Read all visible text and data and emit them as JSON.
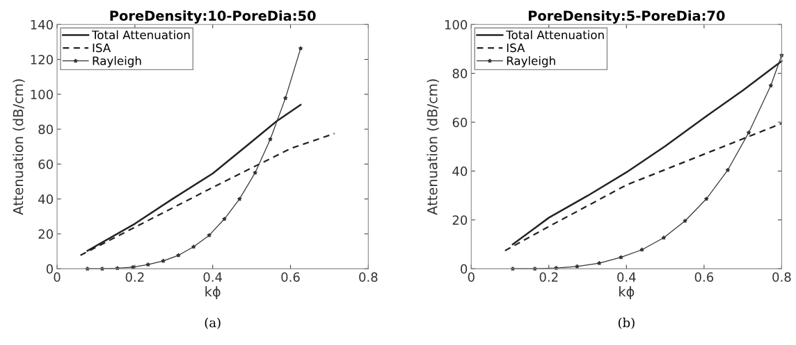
{
  "chart_data": [
    {
      "type": "line",
      "title": "PoreDensity:10-PoreDia:50",
      "xlabel": "kϕ",
      "ylabel": "Attenuation (dB/cm)",
      "xlim": [
        0,
        0.8
      ],
      "ylim": [
        0,
        140
      ],
      "xticks": [
        0,
        0.2,
        0.4,
        0.6,
        0.8
      ],
      "yticks": [
        0,
        20,
        40,
        60,
        80,
        100,
        120,
        140
      ],
      "grid": false,
      "legend": "top left",
      "annotations": [
        "(a)"
      ],
      "series": [
        {
          "name": "Total Attenuation",
          "color": "#222222",
          "line_style": "solid",
          "marker": "none",
          "x": [
            0.078,
            0.2,
            0.3,
            0.4,
            0.5,
            0.564,
            0.626
          ],
          "values": [
            10.3,
            25.8,
            40.5,
            54.6,
            72.8,
            84.5,
            94.0
          ]
        },
        {
          "name": "ISA",
          "color": "#222222",
          "line_style": "dashed",
          "marker": "none",
          "x": [
            0.06,
            0.2,
            0.4,
            0.6,
            0.713
          ],
          "values": [
            7.7,
            23.8,
            46.6,
            68.9,
            77.5
          ]
        },
        {
          "name": "Rayleigh",
          "color": "#333333",
          "line_style": "solid",
          "marker": "star",
          "x": [
            0.078,
            0.116,
            0.155,
            0.195,
            0.234,
            0.273,
            0.312,
            0.351,
            0.391,
            0.43,
            0.469,
            0.509,
            0.548,
            0.587,
            0.626
          ],
          "values": [
            0,
            0,
            0.3,
            0.9,
            2.4,
            4.5,
            7.7,
            12.6,
            19.2,
            28.5,
            40.0,
            55.0,
            74.2,
            97.8,
            126.3
          ]
        }
      ]
    },
    {
      "type": "line",
      "title": "PoreDensity:5-PoreDia:70",
      "xlabel": "kϕ",
      "ylabel": "Attenuation (dB/cm)",
      "xlim": [
        0,
        0.8
      ],
      "ylim": [
        0,
        100
      ],
      "xticks": [
        0,
        0.2,
        0.4,
        0.6,
        0.8
      ],
      "yticks": [
        0,
        20,
        40,
        60,
        80,
        100
      ],
      "grid": false,
      "legend": "top left",
      "annotations": [
        "(b)"
      ],
      "series": [
        {
          "name": "Total Attenuation",
          "color": "#222222",
          "line_style": "solid",
          "marker": "none",
          "x": [
            0.107,
            0.2,
            0.3,
            0.4,
            0.5,
            0.6,
            0.7,
            0.8
          ],
          "values": [
            10.0,
            20.9,
            29.9,
            39.5,
            50.2,
            61.8,
            73.0,
            85.0
          ]
        },
        {
          "name": "ISA",
          "color": "#222222",
          "line_style": "dashed",
          "marker": "none",
          "x": [
            0.087,
            0.2,
            0.4,
            0.6,
            0.8
          ],
          "values": [
            7.4,
            17.3,
            34.3,
            46.9,
            59.5
          ]
        },
        {
          "name": "Rayleigh",
          "color": "#333333",
          "line_style": "solid",
          "marker": "star",
          "x": [
            0.107,
            0.164,
            0.219,
            0.273,
            0.33,
            0.386,
            0.44,
            0.496,
            0.551,
            0.606,
            0.661,
            0.715,
            0.772,
            0.8
          ],
          "values": [
            0,
            0,
            0.3,
            0.95,
            2.3,
            4.7,
            7.8,
            12.7,
            19.6,
            28.6,
            40.4,
            55.7,
            75.0,
            87.4
          ]
        }
      ]
    }
  ]
}
